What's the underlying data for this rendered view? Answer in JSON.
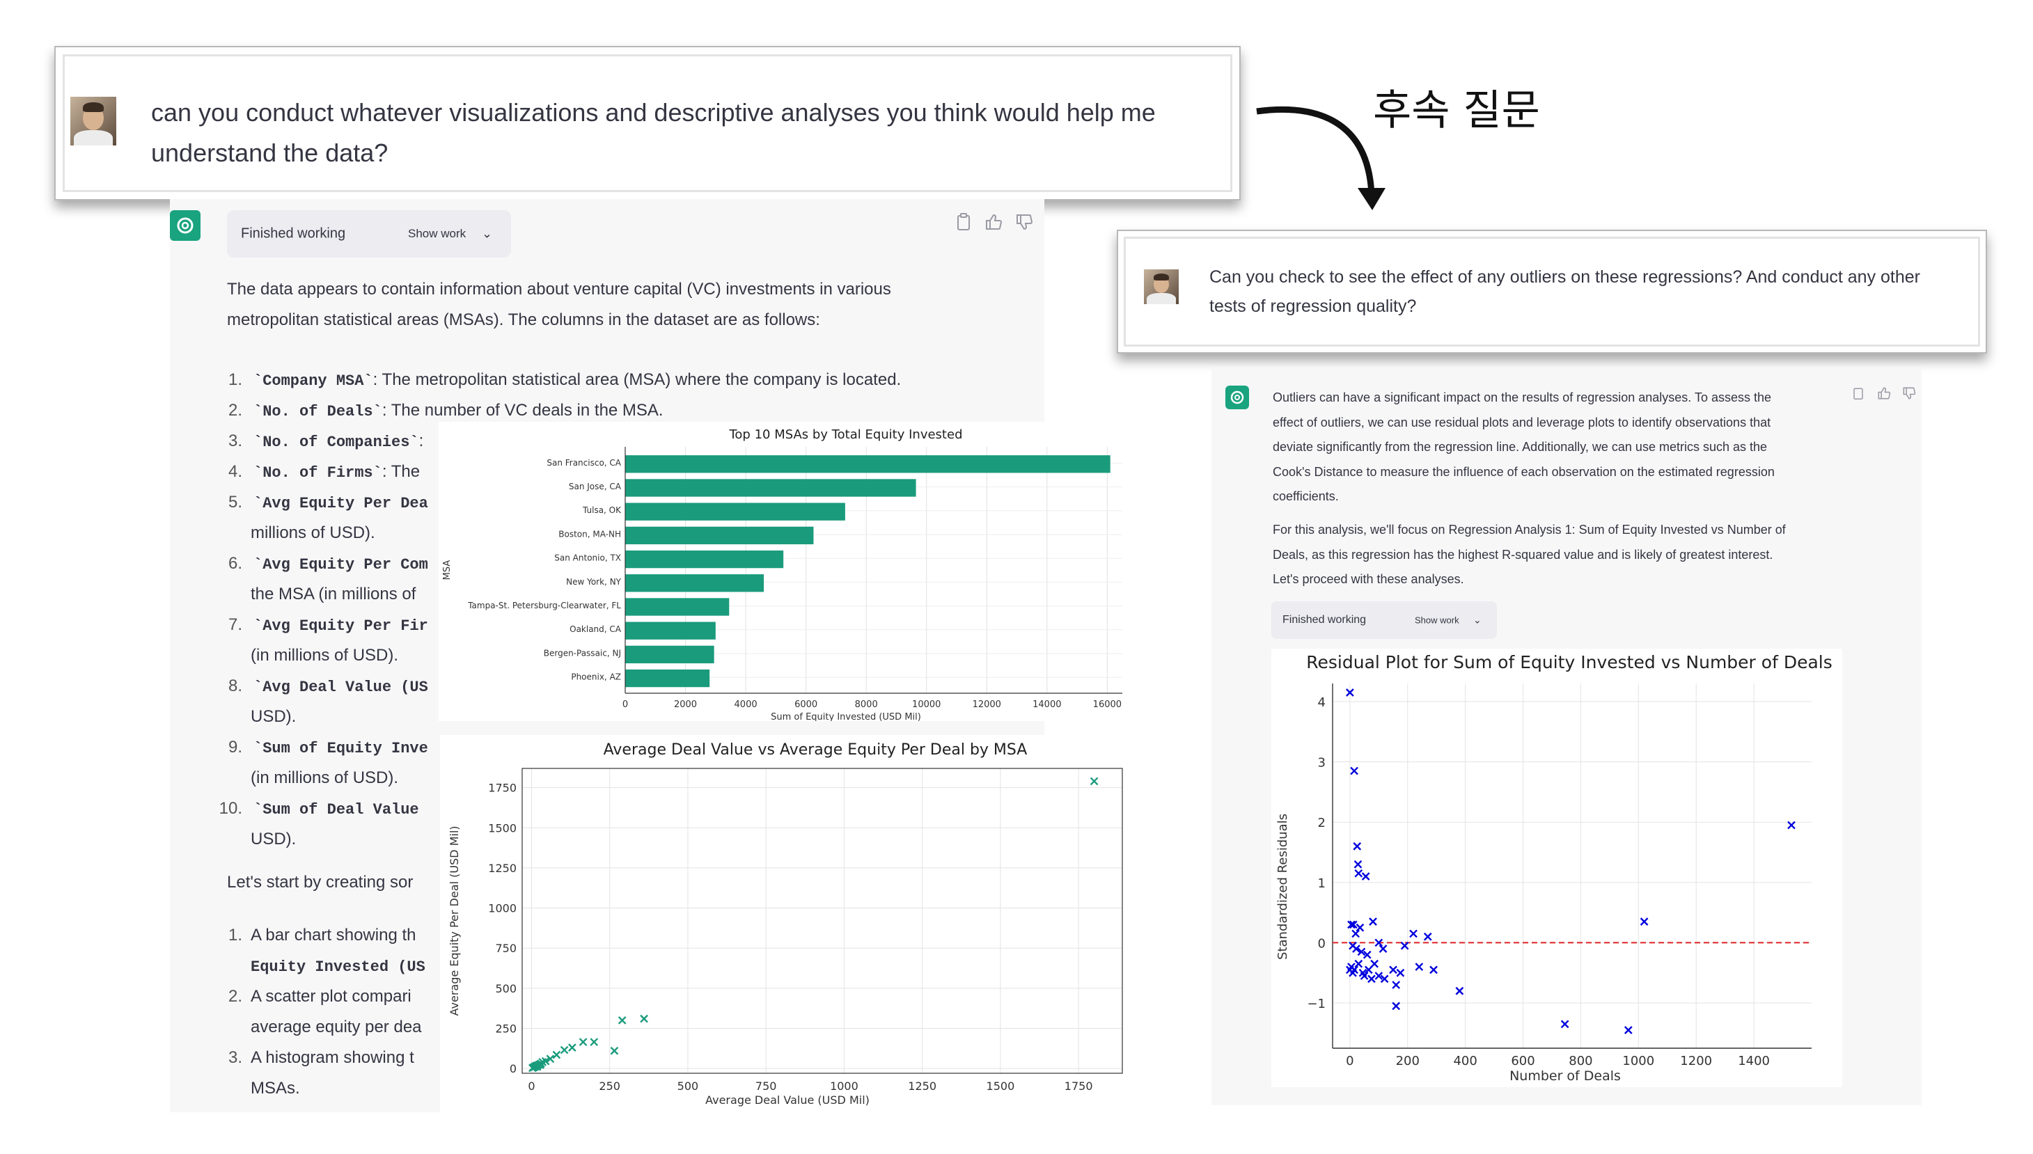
{
  "annotation": {
    "label": "후속 질문"
  },
  "left": {
    "user_prompt": {
      "line1": "can you conduct whatever visualizations and descriptive analyses you think would help me",
      "line2": "understand the data?"
    },
    "status": {
      "label": "Finished working",
      "show_work": "Show work"
    },
    "intro": {
      "line1": "The data appears to contain information about venture capital (VC) investments in various",
      "line2": "metropolitan statistical areas (MSAs). The columns in the dataset are as follows:"
    },
    "columns": [
      {
        "num": "1.",
        "code": "`Company MSA`",
        "rest": ": The metropolitan statistical area (MSA) where the company is located.",
        "cont": ""
      },
      {
        "num": "2.",
        "code": "`No. of Deals`",
        "rest": ": The number of VC deals in the MSA.",
        "cont": ""
      },
      {
        "num": "3.",
        "code": "`No. of Companies`",
        "rest": ":",
        "cont": ""
      },
      {
        "num": "4.",
        "code": "`No. of Firms`",
        "rest": ": The",
        "cont": ""
      },
      {
        "num": "5.",
        "code": "`Avg Equity Per Dea",
        "rest": "",
        "cont": "millions of USD)."
      },
      {
        "num": "6.",
        "code": "`Avg Equity Per Com",
        "rest": "",
        "cont": "the MSA (in millions of"
      },
      {
        "num": "7.",
        "code": "`Avg Equity Per Fir",
        "rest": "",
        "cont": "(in millions of USD)."
      },
      {
        "num": "8.",
        "code": "`Avg Deal Value (US",
        "rest": "",
        "cont": "USD)."
      },
      {
        "num": "9.",
        "code": "`Sum of Equity Inve",
        "rest": "",
        "cont": "(in millions of USD)."
      },
      {
        "num": "10.",
        "code": "`Sum of Deal Value",
        "rest": "",
        "cont": "USD)."
      }
    ],
    "lets_start": "Let's start by creating sor",
    "plan": [
      {
        "num": "1.",
        "line1": "A bar chart showing th",
        "line2": "Equity Invested (US",
        "line2_code": true
      },
      {
        "num": "2.",
        "line1": "A scatter plot compari",
        "line2": "average equity per dea",
        "line2_code": false
      },
      {
        "num": "3.",
        "line1": "A histogram showing t",
        "line2": "MSAs.",
        "line2_code": false
      }
    ]
  },
  "right": {
    "user_prompt": {
      "line1": "Can you check to see the effect of any outliers on these regressions? And conduct any other",
      "line2": "tests of regression quality?"
    },
    "response": [
      "Outliers can have a significant impact on the results of regression analyses. To assess the",
      "effect of outliers, we can use residual plots and leverage plots to identify observations that",
      "deviate significantly from the regression line. Additionally, we can use metrics such as the",
      "Cook's Distance to measure the influence of each observation on the estimated regression",
      "coefficients."
    ],
    "response2": [
      "For this analysis, we'll focus on Regression Analysis 1: Sum of Equity Invested vs Number of",
      "Deals, as this regression has the highest R-squared value and is likely of greatest interest.",
      "Let's proceed with these analyses."
    ],
    "status": {
      "label": "Finished working",
      "show_work": "Show work"
    }
  },
  "chart_data": [
    {
      "type": "bar",
      "orientation": "horizontal",
      "title": "Top 10 MSAs by Total Equity Invested",
      "xlabel": "Sum of Equity Invested (USD Mil)",
      "ylabel": "MSA",
      "categories": [
        "San Francisco, CA",
        "San Jose, CA",
        "Tulsa, OK",
        "Boston, MA-NH",
        "San Antonio, TX",
        "New York, NY",
        "Tampa-St. Petersburg-Clearwater, FL",
        "Oakland, CA",
        "Bergen-Passaic, NJ",
        "Phoenix, AZ"
      ],
      "values": [
        16100,
        9650,
        7300,
        6250,
        5250,
        4600,
        3450,
        3000,
        2950,
        2800
      ],
      "xlim": [
        0,
        16500
      ],
      "xticks": [
        0,
        2000,
        4000,
        6000,
        8000,
        10000,
        12000,
        14000,
        16000
      ],
      "color": "#1a9b7c"
    },
    {
      "type": "scatter",
      "title": "Average Deal Value vs Average Equity Per Deal by MSA",
      "xlabel": "Average Deal Value (USD Mil)",
      "ylabel": "Average Equity Per Deal (USD Mil)",
      "xlim": [
        -30,
        1890
      ],
      "ylim": [
        -30,
        1870
      ],
      "xticks": [
        0,
        250,
        500,
        750,
        1000,
        1250,
        1500,
        1750
      ],
      "yticks": [
        0,
        250,
        500,
        750,
        1000,
        1250,
        1500,
        1750
      ],
      "marker": "x",
      "color": "#1a9b7c",
      "points": [
        [
          1800,
          1790
        ],
        [
          360,
          310
        ],
        [
          290,
          300
        ],
        [
          265,
          110
        ],
        [
          200,
          165
        ],
        [
          165,
          165
        ],
        [
          130,
          130
        ],
        [
          105,
          115
        ],
        [
          80,
          85
        ],
        [
          60,
          60
        ],
        [
          45,
          45
        ],
        [
          35,
          40
        ],
        [
          30,
          30
        ],
        [
          25,
          25
        ],
        [
          20,
          20
        ],
        [
          15,
          18
        ],
        [
          12,
          12
        ],
        [
          10,
          10
        ],
        [
          8,
          8
        ],
        [
          5,
          5
        ],
        [
          3,
          3
        ],
        [
          18,
          10
        ],
        [
          28,
          22
        ]
      ]
    },
    {
      "type": "scatter",
      "title": "Residual Plot for Sum of Equity Invested vs Number of Deals",
      "xlabel": "Number of Deals",
      "ylabel": "Standardized Residuals",
      "xlim": [
        -60,
        1600
      ],
      "ylim": [
        -1.75,
        4.3
      ],
      "xticks": [
        0,
        200,
        400,
        600,
        800,
        1000,
        1200,
        1400
      ],
      "yticks": [
        -1,
        0,
        1,
        2,
        3,
        4
      ],
      "reference_line": 0,
      "reference_color": "#dd2222",
      "marker": "x",
      "color": "#0000dd",
      "points": [
        [
          0,
          4.15
        ],
        [
          15,
          2.85
        ],
        [
          25,
          1.6
        ],
        [
          28,
          1.3
        ],
        [
          30,
          1.15
        ],
        [
          55,
          1.1
        ],
        [
          5,
          0.3
        ],
        [
          12,
          0.3
        ],
        [
          20,
          0.15
        ],
        [
          35,
          0.25
        ],
        [
          80,
          0.35
        ],
        [
          10,
          -0.05
        ],
        [
          22,
          -0.1
        ],
        [
          40,
          -0.15
        ],
        [
          60,
          -0.2
        ],
        [
          100,
          0.0
        ],
        [
          115,
          -0.1
        ],
        [
          5,
          -0.4
        ],
        [
          15,
          -0.45
        ],
        [
          30,
          -0.35
        ],
        [
          45,
          -0.5
        ],
        [
          65,
          -0.45
        ],
        [
          85,
          -0.35
        ],
        [
          100,
          -0.55
        ],
        [
          120,
          -0.6
        ],
        [
          150,
          -0.45
        ],
        [
          160,
          -0.7
        ],
        [
          175,
          -0.5
        ],
        [
          190,
          -0.05
        ],
        [
          220,
          0.15
        ],
        [
          240,
          -0.4
        ],
        [
          270,
          0.1
        ],
        [
          290,
          -0.45
        ],
        [
          160,
          -1.05
        ],
        [
          380,
          -0.8
        ],
        [
          75,
          -0.6
        ],
        [
          0,
          -0.45
        ],
        [
          10,
          -0.5
        ],
        [
          50,
          -0.55
        ],
        [
          1020,
          0.35
        ],
        [
          1530,
          1.95
        ],
        [
          745,
          -1.35
        ],
        [
          965,
          -1.45
        ]
      ]
    }
  ]
}
